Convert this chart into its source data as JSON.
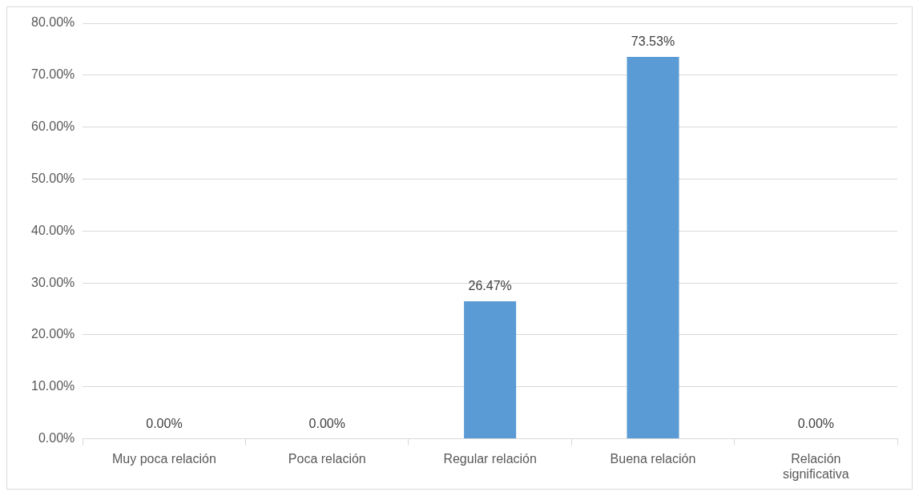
{
  "chart_data": {
    "type": "bar",
    "categories": [
      "Muy poca relación",
      "Poca relación",
      "Regular relación",
      "Buena relación",
      "Relación significativa"
    ],
    "values": [
      0,
      0,
      26.47,
      73.53,
      0
    ],
    "value_labels": [
      "0.00%",
      "0.00%",
      "26.47%",
      "73.53%",
      "0.00%"
    ],
    "color": "#5b9bd5",
    "ylim": [
      0,
      80
    ],
    "yticks": [
      {
        "value": 0,
        "label": "0.00%"
      },
      {
        "value": 10,
        "label": "10.00%"
      },
      {
        "value": 20,
        "label": "20.00%"
      },
      {
        "value": 30,
        "label": "30.00%"
      },
      {
        "value": 40,
        "label": "40.00%"
      },
      {
        "value": 50,
        "label": "50.00%"
      },
      {
        "value": 60,
        "label": "60.00%"
      },
      {
        "value": 70,
        "label": "70.00%"
      },
      {
        "value": 80,
        "label": "80.00%"
      }
    ],
    "grid": "y"
  }
}
